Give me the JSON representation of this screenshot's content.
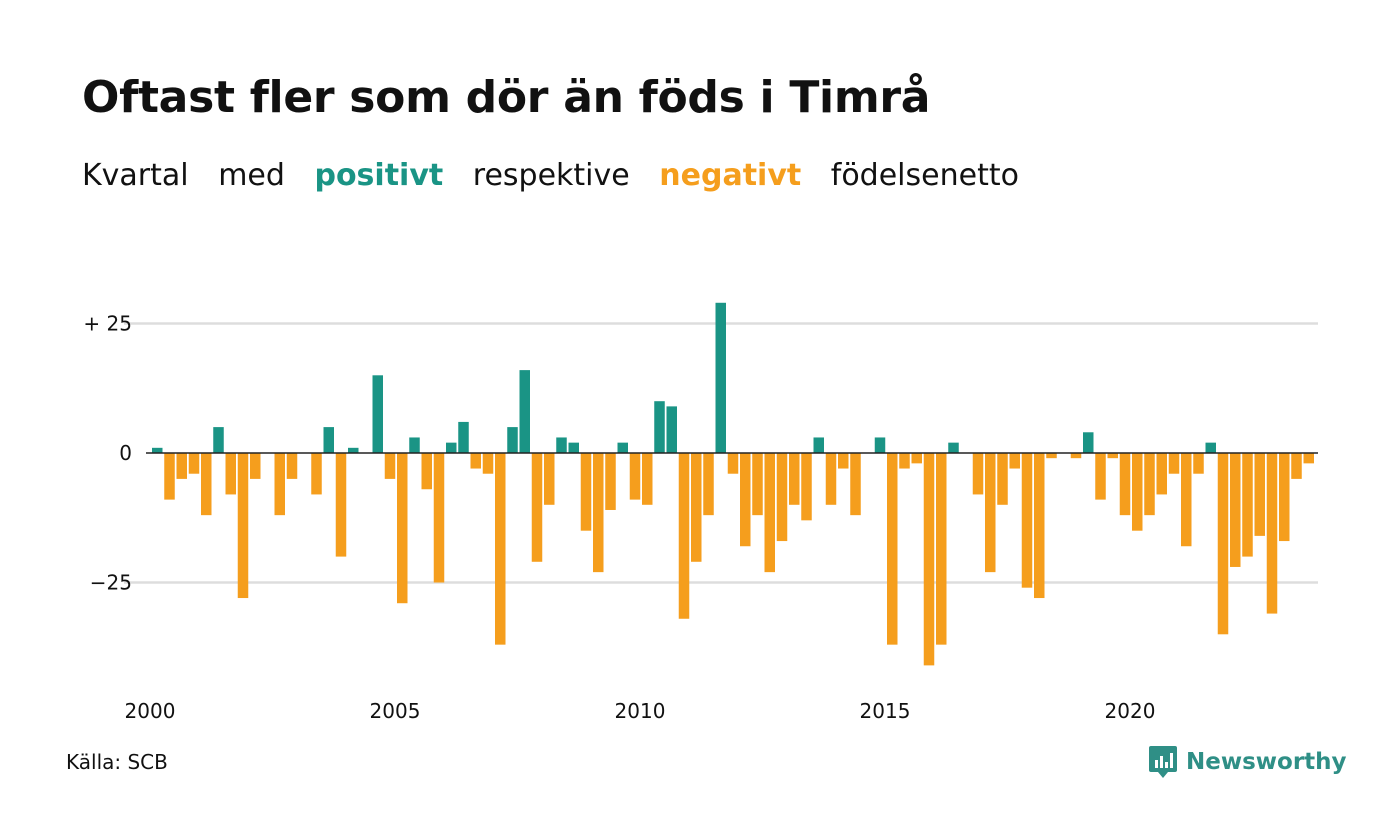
{
  "title": "Oftast fler som dör än föds i Timrå",
  "subtitle": {
    "part1": "Kvartal",
    "part2": "med",
    "positive": "positivt",
    "part3": "respektive",
    "negative": "negativt",
    "part4": "födelsenetto"
  },
  "source": "Källa: SCB",
  "brand": {
    "name": "Newsworthy",
    "icon": "newsworthy-logo-icon"
  },
  "colors": {
    "positive": "#1a9485",
    "negative": "#f59e1d",
    "grid": "#dddddd",
    "baseline": "#222222"
  },
  "chart_data": {
    "type": "bar",
    "x_start": "2000 Q1",
    "x_end": "2023 Q4",
    "xtick_labels": [
      "2000",
      "2005",
      "2010",
      "2015",
      "2020"
    ],
    "ytick_labels": [
      "+ 25",
      "0",
      "−25"
    ],
    "yticks": [
      25,
      0,
      -25
    ],
    "ylim": [
      -43,
      31
    ],
    "grid": true,
    "values": [
      1,
      -9,
      -5,
      -4,
      -12,
      5,
      -8,
      -28,
      -5,
      0,
      -12,
      -5,
      0,
      -8,
      5,
      -20,
      1,
      0,
      15,
      -5,
      -29,
      3,
      -7,
      -25,
      2,
      6,
      -3,
      -4,
      -37,
      5,
      16,
      -21,
      -10,
      3,
      2,
      -15,
      -23,
      -11,
      2,
      -9,
      -10,
      10,
      9,
      -32,
      -21,
      -12,
      29,
      -4,
      -18,
      -12,
      -23,
      -17,
      -10,
      -13,
      3,
      -10,
      -3,
      -12,
      0,
      3,
      -37,
      -3,
      -2,
      -41,
      -37,
      2,
      0,
      -8,
      -23,
      -10,
      -3,
      -26,
      -28,
      -1,
      0,
      -1,
      4,
      -9,
      -1,
      -12,
      -15,
      -12,
      -8,
      -4,
      -18,
      -4,
      2,
      -35,
      -22,
      -20,
      -16,
      -31,
      -17,
      -5,
      -2,
      0
    ]
  }
}
